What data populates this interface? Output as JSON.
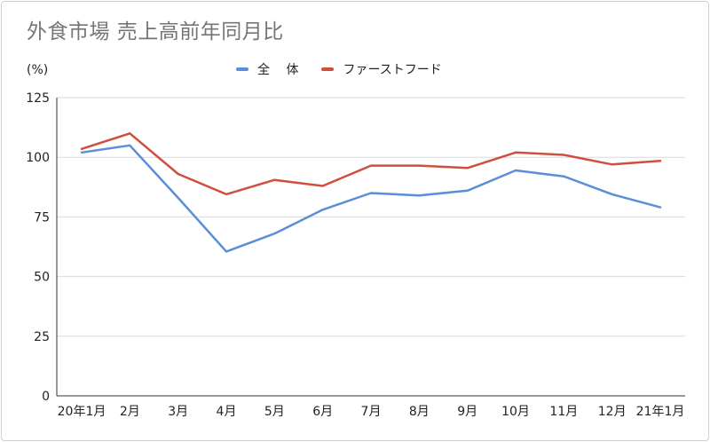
{
  "chart_data": {
    "type": "line",
    "title": "外食市場 売上高前年同月比",
    "ylabel": "(%)",
    "xlabel": "",
    "categories": [
      "20年1月",
      "2月",
      "3月",
      "4月",
      "5月",
      "6月",
      "7月",
      "8月",
      "9月",
      "10月",
      "11月",
      "12月",
      "21年1月"
    ],
    "yticks": [
      "0",
      "25",
      "50",
      "75",
      "100",
      "125"
    ],
    "ylim": [
      0,
      125
    ],
    "grid": true,
    "legend_position": "top",
    "series": [
      {
        "name": "全　 体",
        "color": "#5b8dd9",
        "values": [
          102,
          105,
          83,
          60.5,
          68,
          78,
          85,
          84,
          86,
          94.5,
          92,
          84.5,
          79
        ]
      },
      {
        "name": "ファーストフード",
        "color": "#cf4f3f",
        "values": [
          103.5,
          110,
          93,
          84.5,
          90.5,
          88,
          96.5,
          96.5,
          95.5,
          102,
          101,
          97,
          98.5
        ]
      }
    ]
  }
}
